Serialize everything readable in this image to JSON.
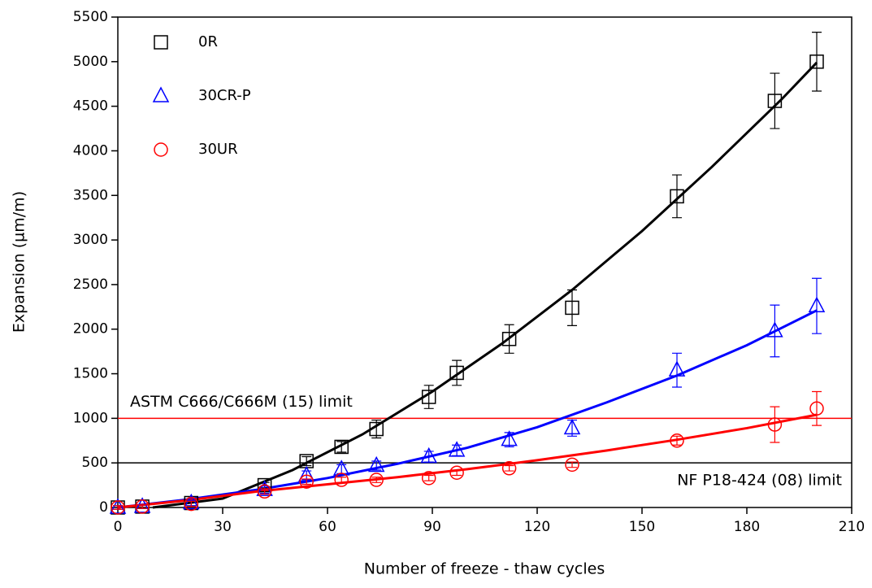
{
  "chart_data": {
    "type": "scatter",
    "x_label": "Number of freeze - thaw cycles",
    "y_label": "Expansion (µm/m)",
    "xlim": [
      0,
      210
    ],
    "xticks": [
      0,
      30,
      60,
      90,
      120,
      150,
      180,
      210
    ],
    "ylim": [
      0,
      5500
    ],
    "yticks": [
      0,
      500,
      1000,
      1500,
      2000,
      2500,
      3000,
      3500,
      4000,
      4500,
      5000,
      5500
    ],
    "legend": "upper-left",
    "x": [
      0,
      7,
      21,
      42,
      54,
      64,
      74,
      89,
      97,
      112,
      130,
      160,
      188,
      200
    ],
    "series": [
      {
        "name": "0R",
        "color": "#000000",
        "marker": "square",
        "values": [
          0,
          10,
          50,
          250,
          520,
          680,
          880,
          1240,
          1510,
          1890,
          2240,
          3490,
          4560,
          5000
        ],
        "errors": [
          20,
          20,
          30,
          30,
          50,
          60,
          100,
          130,
          140,
          160,
          200,
          240,
          310,
          330
        ],
        "fit_x": [
          10,
          30,
          50,
          70,
          90,
          110,
          130,
          150,
          170,
          190,
          200
        ],
        "fit_values": [
          0,
          100,
          420,
          820,
          1300,
          1840,
          2440,
          3100,
          3820,
          4580,
          4990
        ]
      },
      {
        "name": "30CR-P",
        "color": "#0000ff",
        "marker": "triangle",
        "values": [
          0,
          10,
          50,
          200,
          360,
          430,
          470,
          570,
          640,
          760,
          890,
          1540,
          1980,
          2260
        ],
        "errors": [
          20,
          20,
          30,
          40,
          50,
          50,
          50,
          60,
          60,
          80,
          90,
          190,
          290,
          310
        ],
        "fit_x": [
          0,
          20,
          40,
          60,
          80,
          100,
          120,
          140,
          160,
          180,
          200
        ],
        "fit_values": [
          0,
          90,
          200,
          330,
          490,
          670,
          900,
          1180,
          1480,
          1820,
          2210
        ]
      },
      {
        "name": "30UR",
        "color": "#ff0000",
        "marker": "circle",
        "values": [
          0,
          10,
          40,
          180,
          290,
          310,
          310,
          330,
          390,
          440,
          480,
          750,
          930,
          1110
        ],
        "errors": [
          20,
          20,
          30,
          30,
          30,
          30,
          30,
          30,
          30,
          30,
          30,
          50,
          200,
          190
        ],
        "fit_x": [
          0,
          20,
          40,
          60,
          80,
          100,
          120,
          140,
          160,
          180,
          200
        ],
        "fit_values": [
          0,
          80,
          180,
          260,
          340,
          430,
          530,
          640,
          760,
          890,
          1040
        ]
      }
    ],
    "reference_lines": [
      {
        "value": 1000,
        "label": "ASTM C666/C666M (15) limit",
        "color": "#ff0000"
      },
      {
        "value": 500,
        "label": "NF P18-424 (08) limit",
        "color": "#000000"
      }
    ]
  }
}
